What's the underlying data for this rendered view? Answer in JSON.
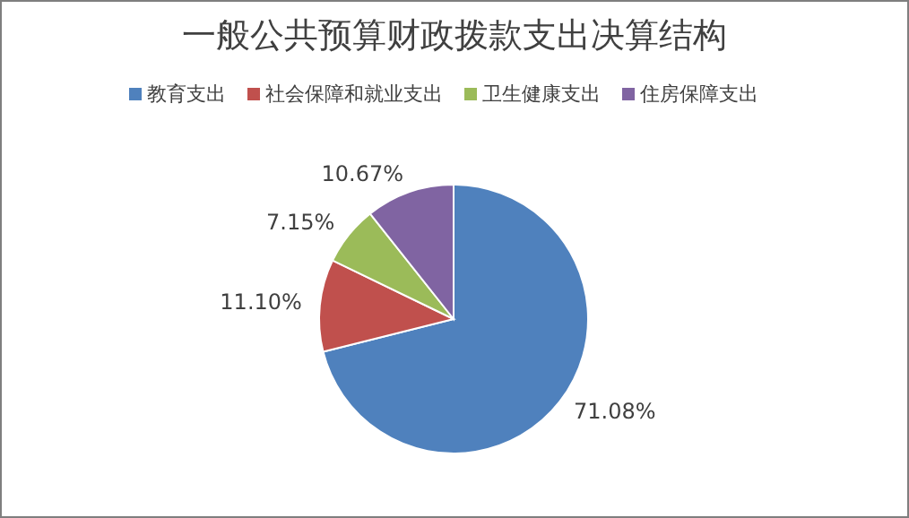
{
  "chart_data": {
    "type": "pie",
    "title": "一般公共预算财政拨款支出决算结构",
    "categories": [
      "教育支出",
      "社会保障和就业支出",
      "卫生健康支出",
      "住房保障支出"
    ],
    "values": [
      71.08,
      11.1,
      7.15,
      10.67
    ],
    "colors": [
      "#4f81bd",
      "#c0504d",
      "#9bbb59",
      "#8064a2"
    ],
    "value_labels": [
      "71.08%",
      "11.10%",
      "7.15%",
      "10.67%"
    ],
    "legend": "top"
  }
}
